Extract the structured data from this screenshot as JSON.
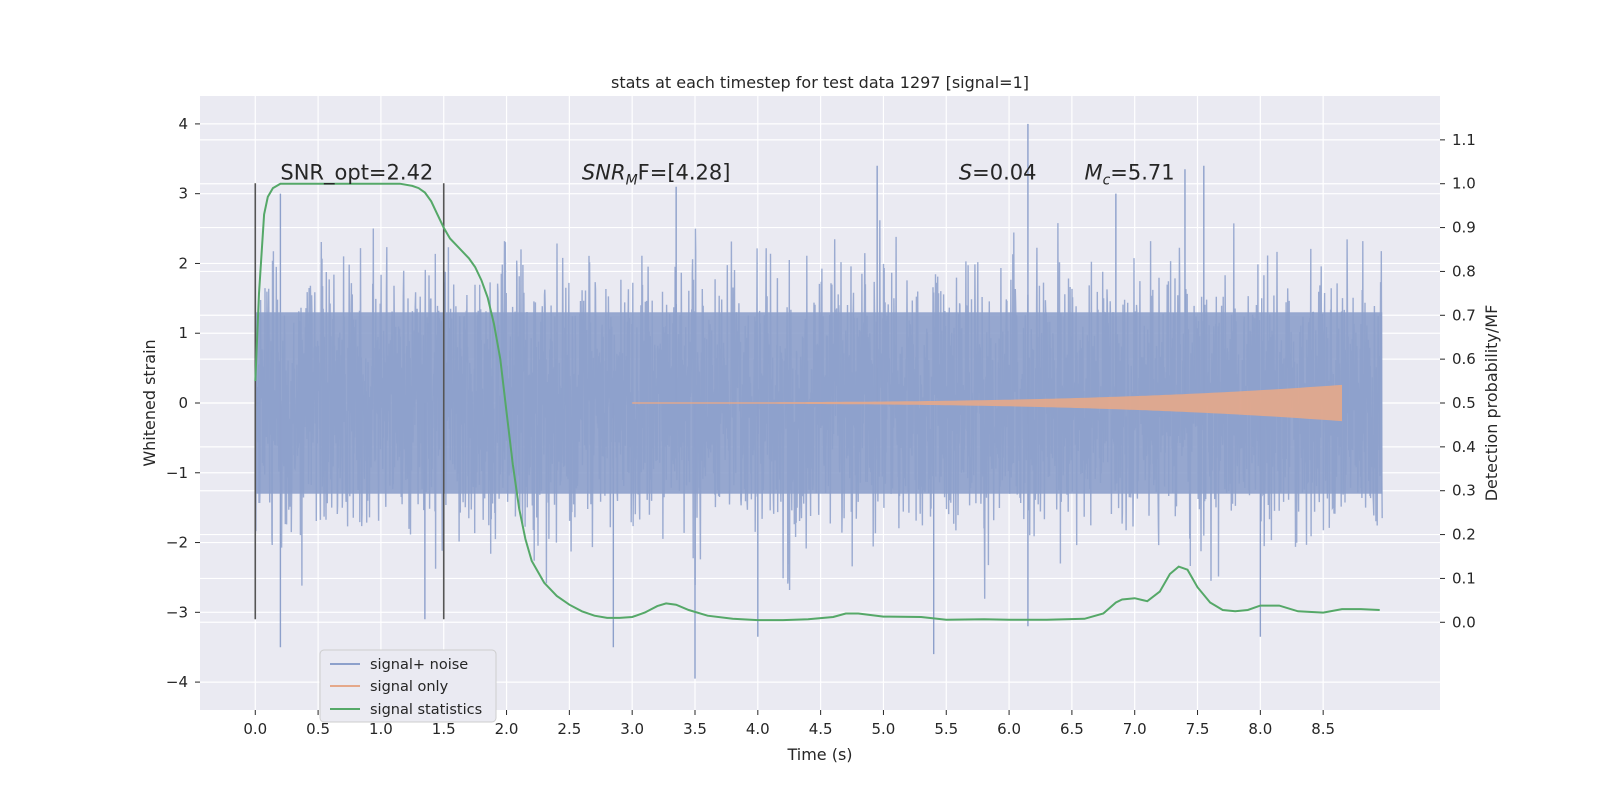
{
  "chart_data": {
    "type": "line",
    "title": "stats at each timestep for test data 1297 [signal=1]",
    "xlabel": "Time (s)",
    "ylabel": "Whitened strain",
    "y2label": "Detection probability/MF",
    "xlim": [
      -0.44,
      9.43
    ],
    "ylim": [
      -4.4,
      4.4
    ],
    "y2lim": [
      -0.2,
      1.2
    ],
    "xticks": [
      0.0,
      0.5,
      1.0,
      1.5,
      2.0,
      2.5,
      3.0,
      3.5,
      4.0,
      4.5,
      5.0,
      5.5,
      6.0,
      6.5,
      7.0,
      7.5,
      8.0,
      8.5
    ],
    "yticks": [
      -4,
      -3,
      -2,
      -1,
      0,
      1,
      2,
      3,
      4
    ],
    "y2ticks": [
      0.0,
      0.1,
      0.2,
      0.3,
      0.4,
      0.5,
      0.6,
      0.7,
      0.8,
      0.9,
      1.0,
      1.1
    ],
    "xtick_labels": [
      "0.0",
      "0.5",
      "1.0",
      "1.5",
      "2.0",
      "2.5",
      "3.0",
      "3.5",
      "4.0",
      "4.5",
      "5.0",
      "5.5",
      "6.0",
      "6.5",
      "7.0",
      "7.5",
      "8.0",
      "8.5"
    ],
    "ytick_labels": [
      "−4",
      "−3",
      "−2",
      "−1",
      "0",
      "1",
      "2",
      "3",
      "4"
    ],
    "y2tick_labels": [
      "0.0",
      "0.1",
      "0.2",
      "0.3",
      "0.4",
      "0.5",
      "0.6",
      "0.7",
      "0.8",
      "0.9",
      "1.0",
      "1.1"
    ],
    "grid": true,
    "legend_position": "lower-left",
    "series": [
      {
        "name": "signal+ noise",
        "color": "#8da0cb",
        "axis": "left",
        "kind": "noise-trace",
        "x_range": [
          0.0,
          8.97
        ],
        "typical_abs_max": 1.3,
        "peak_max": 4.0,
        "peak_min": -3.95
      },
      {
        "name": "signal only",
        "color": "#e5a88a",
        "axis": "left",
        "kind": "chirp",
        "x_range": [
          3.0,
          8.65
        ],
        "amplitude_end": 0.25
      },
      {
        "name": "signal statistics",
        "color": "#55a868",
        "axis": "right",
        "x": [
          0.0,
          0.03,
          0.07,
          0.1,
          0.14,
          0.2,
          0.3,
          0.5,
          0.8,
          1.0,
          1.15,
          1.25,
          1.3,
          1.35,
          1.4,
          1.45,
          1.5,
          1.55,
          1.6,
          1.65,
          1.7,
          1.75,
          1.8,
          1.85,
          1.9,
          1.95,
          2.0,
          2.05,
          2.1,
          2.15,
          2.2,
          2.3,
          2.4,
          2.5,
          2.6,
          2.7,
          2.8,
          2.9,
          3.0,
          3.1,
          3.2,
          3.27,
          3.35,
          3.45,
          3.6,
          3.8,
          4.0,
          4.2,
          4.4,
          4.6,
          4.7,
          4.8,
          5.0,
          5.3,
          5.5,
          5.8,
          6.0,
          6.3,
          6.6,
          6.75,
          6.85,
          6.9,
          7.0,
          7.1,
          7.2,
          7.28,
          7.35,
          7.42,
          7.5,
          7.6,
          7.7,
          7.8,
          7.9,
          8.0,
          8.15,
          8.3,
          8.5,
          8.65,
          8.8,
          8.95
        ],
        "values": [
          0.55,
          0.75,
          0.93,
          0.97,
          0.99,
          1.0,
          1.0,
          1.0,
          1.0,
          1.0,
          1.0,
          0.995,
          0.99,
          0.98,
          0.96,
          0.93,
          0.9,
          0.875,
          0.86,
          0.845,
          0.83,
          0.81,
          0.78,
          0.74,
          0.68,
          0.6,
          0.48,
          0.36,
          0.26,
          0.19,
          0.14,
          0.09,
          0.06,
          0.04,
          0.025,
          0.015,
          0.01,
          0.01,
          0.012,
          0.022,
          0.037,
          0.043,
          0.04,
          0.028,
          0.015,
          0.008,
          0.005,
          0.005,
          0.007,
          0.012,
          0.02,
          0.02,
          0.013,
          0.012,
          0.006,
          0.007,
          0.006,
          0.006,
          0.008,
          0.02,
          0.045,
          0.052,
          0.055,
          0.048,
          0.07,
          0.11,
          0.127,
          0.12,
          0.08,
          0.045,
          0.028,
          0.025,
          0.028,
          0.038,
          0.038,
          0.025,
          0.022,
          0.03,
          0.03,
          0.028
        ]
      }
    ],
    "markers": [
      {
        "name": "vertical-line-0",
        "x": 0.0,
        "y_range": [
          -3.1,
          3.15
        ]
      },
      {
        "name": "vertical-line-1.5",
        "x": 1.5,
        "y_range": [
          -3.1,
          3.15
        ]
      }
    ],
    "annotations": [
      {
        "name": "snr-opt-annotation",
        "text": "SNR_opt=2.42",
        "x": 0.2,
        "y": 3.2,
        "italic": false
      },
      {
        "name": "snr-mf-annotation",
        "text": "SNR",
        "sub": "M",
        "rest": "F=[4.28]",
        "x": 2.6,
        "y": 3.2,
        "italic_parts": true
      },
      {
        "name": "s-annotation",
        "text": "S",
        "rest": "=0.04",
        "x": 5.6,
        "y": 3.2,
        "italic_parts": true
      },
      {
        "name": "mc-annotation",
        "text": "M",
        "sub": "c",
        "rest": "=5.71",
        "x": 6.6,
        "y": 3.2,
        "italic_parts": true
      }
    ]
  }
}
